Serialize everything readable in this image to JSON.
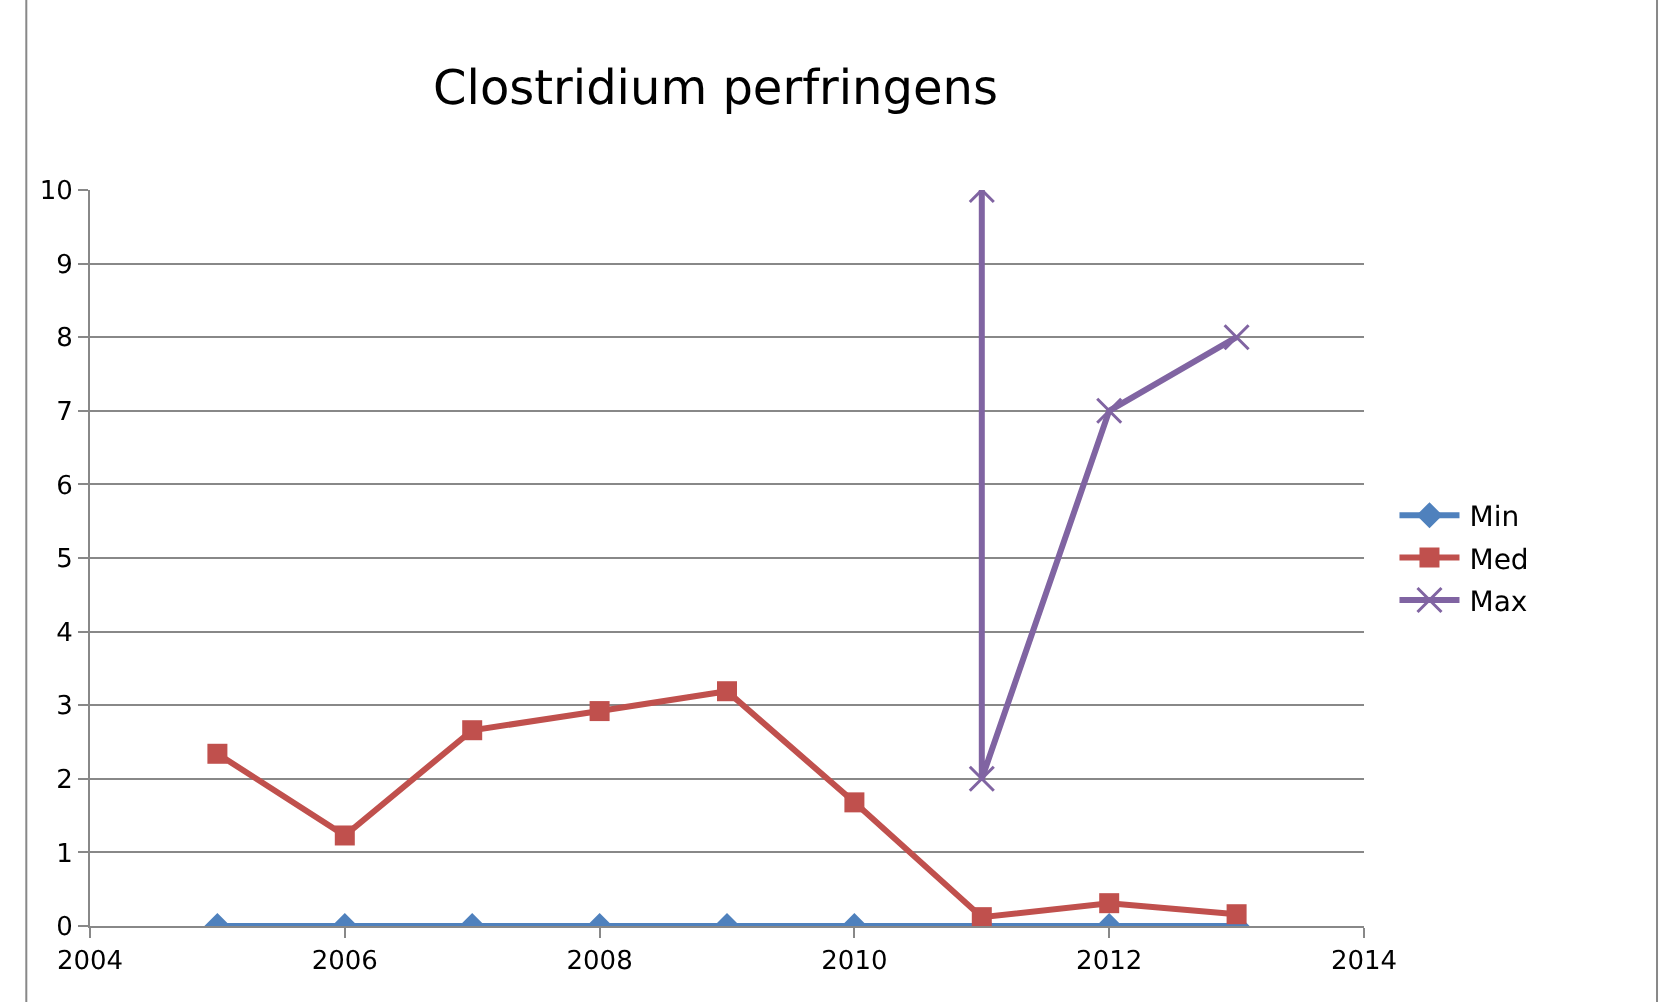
{
  "chart_data": {
    "type": "line",
    "title": "Clostridium perfringens",
    "x": [
      2005,
      2006,
      2007,
      2008,
      2009,
      2010,
      2011,
      2012,
      2013
    ],
    "series": [
      {
        "name": "Min",
        "color": "#4f81bd",
        "marker": "diamond",
        "values": [
          0,
          0,
          0,
          0,
          0,
          0,
          0,
          0,
          0
        ]
      },
      {
        "name": "Med",
        "color": "#c0504d",
        "marker": "square",
        "values": [
          2.34,
          1.23,
          2.66,
          2.92,
          3.19,
          1.68,
          0.12,
          0.31,
          0.16
        ]
      },
      {
        "name": "Max",
        "color": "#8064a2",
        "marker": "cross",
        "x": [
          2011,
          2011,
          2012,
          2013
        ],
        "values": [
          10,
          2,
          7,
          8
        ]
      }
    ],
    "xlim": [
      2004,
      2014
    ],
    "xticks": [
      2004,
      2006,
      2008,
      2010,
      2012,
      2014
    ],
    "ylim": [
      0,
      10
    ],
    "yticks": [
      0,
      1,
      2,
      3,
      4,
      5,
      6,
      7,
      8,
      9,
      10
    ],
    "grid": "y",
    "legend": "right"
  }
}
